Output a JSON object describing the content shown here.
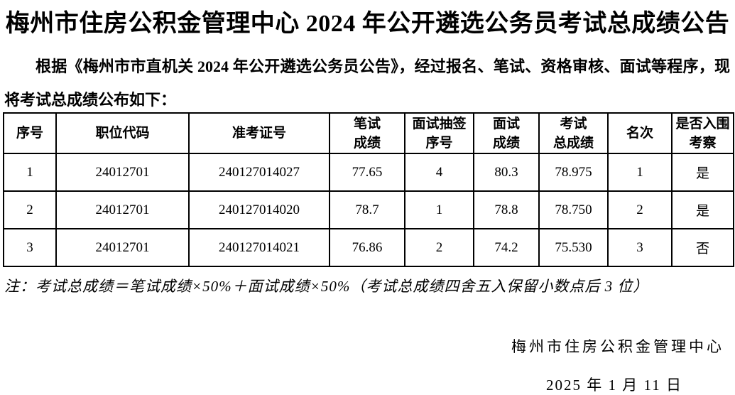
{
  "page": {
    "title": "梅州市住房公积金管理中心 2024 年公开遴选公务员考试总成绩公告",
    "intro": "根据《梅州市市直机关 2024 年公开遴选公务员公告》，经过报名、笔试、资格审核、面试等程序，现将考试总成绩公布如下：",
    "note": "注：考试总成绩＝笔试成绩×50%＋面试成绩×50%（考试总成绩四舍五入保留小数点后 3 位）",
    "signature": "梅州市住房公积金管理中心",
    "date": "2025 年 1 月 11 日"
  },
  "table": {
    "headers": [
      "序号",
      "职位代码",
      "准考证号",
      "笔试\n成绩",
      "面试抽签\n序号",
      "面试\n成绩",
      "考试\n总成绩",
      "名次",
      "是否入围\n考察"
    ],
    "rows": [
      [
        "1",
        "24012701",
        "240127014027",
        "77.65",
        "4",
        "80.3",
        "78.975",
        "1",
        "是"
      ],
      [
        "2",
        "24012701",
        "240127014020",
        "78.7",
        "1",
        "78.8",
        "78.750",
        "2",
        "是"
      ],
      [
        "3",
        "24012701",
        "240127014021",
        "76.86",
        "2",
        "74.2",
        "75.530",
        "3",
        "否"
      ]
    ]
  }
}
